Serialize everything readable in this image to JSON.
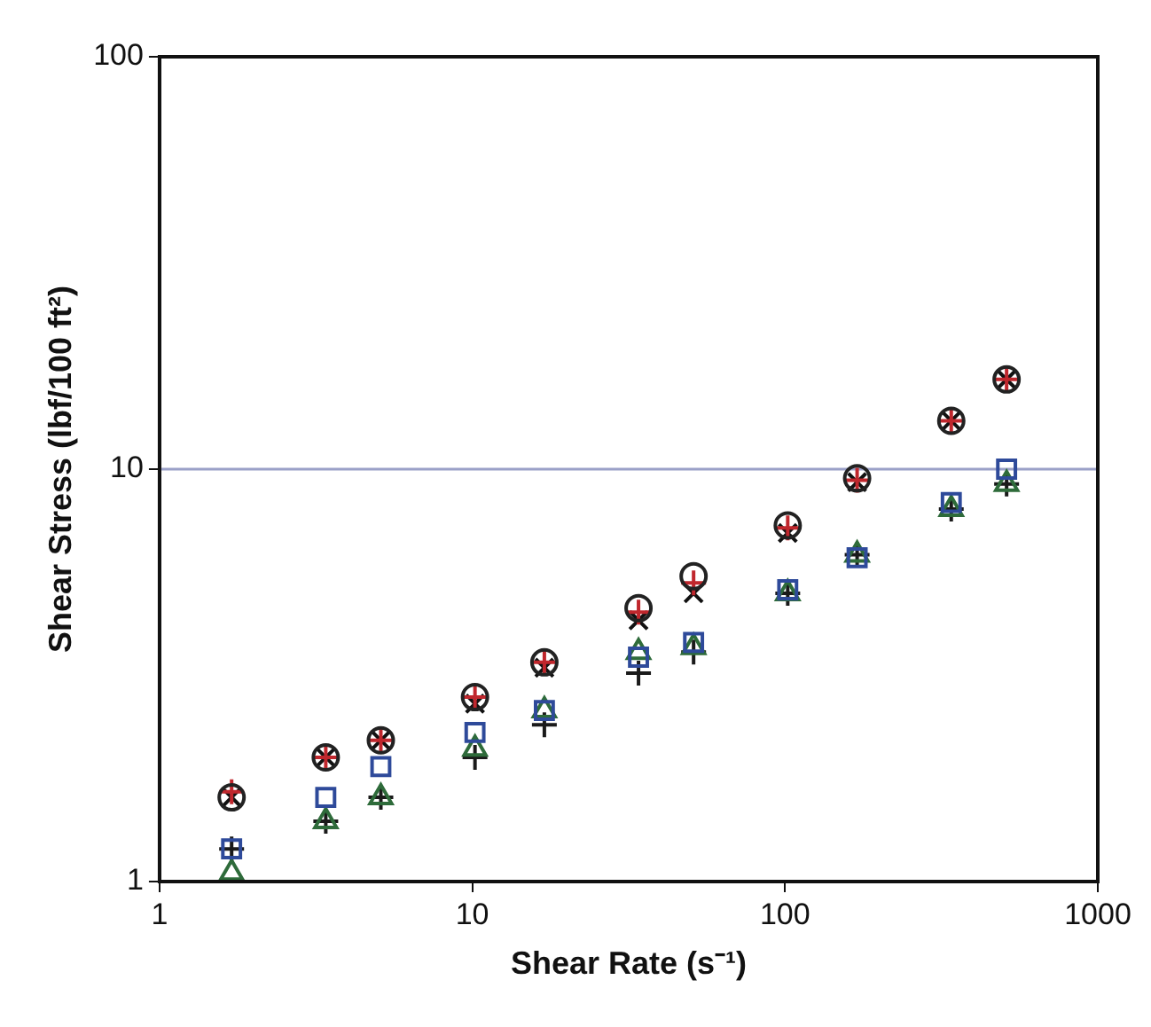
{
  "chart_data": {
    "type": "scatter",
    "xlabel": "Shear Rate (s⁻¹)",
    "ylabel": "Shear Stress (lbf/100 ft²)",
    "x": [
      1.7,
      3.4,
      5.1,
      10.2,
      17,
      34,
      51,
      102,
      170,
      340,
      511
    ],
    "series": [
      {
        "color": "#222222",
        "marker": "circle",
        "values": [
          1.6,
          2.0,
          2.2,
          2.8,
          3.4,
          4.6,
          5.5,
          7.3,
          9.5,
          13.1,
          16.5
        ]
      },
      {
        "color": "#c0272d",
        "marker": "cross",
        "values": [
          1.65,
          2.0,
          2.2,
          2.8,
          3.4,
          4.5,
          5.3,
          7.2,
          9.4,
          13.1,
          16.5
        ]
      },
      {
        "color": "#111111",
        "marker": "x",
        "values": [
          1.6,
          2.0,
          2.2,
          2.7,
          3.3,
          4.3,
          5.0,
          7.0,
          9.3,
          13.1,
          16.5
        ]
      },
      {
        "color": "#2e4a9a",
        "marker": "square",
        "values": [
          1.2,
          1.6,
          1.9,
          2.3,
          2.6,
          3.5,
          3.8,
          5.1,
          6.1,
          8.3,
          10
        ]
      },
      {
        "color": "#2e6b3a",
        "marker": "triangle",
        "values": [
          1.05,
          1.4,
          1.6,
          2.1,
          2.6,
          3.6,
          3.7,
          5.0,
          6.2,
          8.0,
          9.2
        ]
      },
      {
        "color": "#1a1a1a",
        "marker": "cross",
        "values": [
          1.2,
          1.4,
          1.6,
          2.0,
          2.4,
          3.2,
          3.6,
          5.0,
          6.2,
          8.0,
          9.2
        ]
      }
    ],
    "log": "xy",
    "xlim": [
      1,
      1000
    ],
    "ylim": [
      1,
      100
    ],
    "xticks": [
      1,
      10,
      100,
      1000
    ],
    "yticks": [
      1,
      10,
      100
    ],
    "ref_lines": [
      {
        "axis": "y",
        "value": 10,
        "color": "#9aa0c8"
      }
    ],
    "legend": false
  }
}
